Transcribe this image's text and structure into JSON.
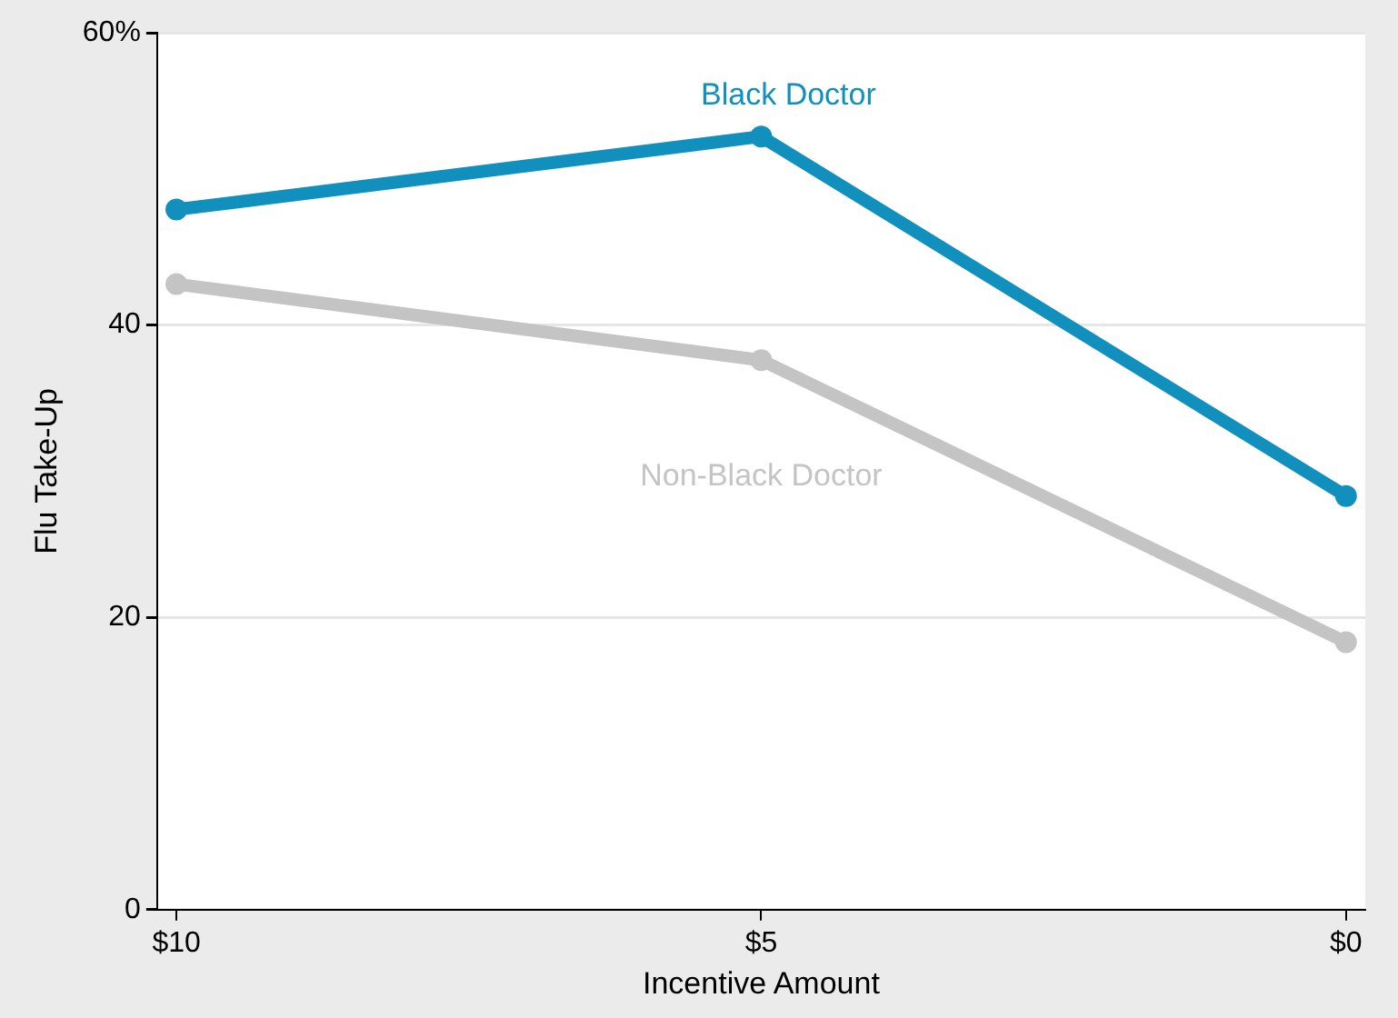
{
  "chart_data": {
    "type": "line",
    "xlabel": "Incentive Amount",
    "ylabel": "Flu Take-Up",
    "categories": [
      "$10",
      "$5",
      "$0"
    ],
    "series": [
      {
        "name": "Black Doctor",
        "color": "#118fbd",
        "values": [
          47.9,
          52.9,
          28.3
        ]
      },
      {
        "name": "Non-Black Doctor",
        "color": "#c4c4c4",
        "values": [
          42.8,
          37.6,
          18.3
        ]
      }
    ],
    "ylim": [
      0,
      60
    ],
    "yticks": [
      0,
      20,
      40,
      {
        "value": 60,
        "label": "60%"
      }
    ],
    "grid": "y",
    "legend": false,
    "marker": "circle",
    "line_style": "solid"
  }
}
